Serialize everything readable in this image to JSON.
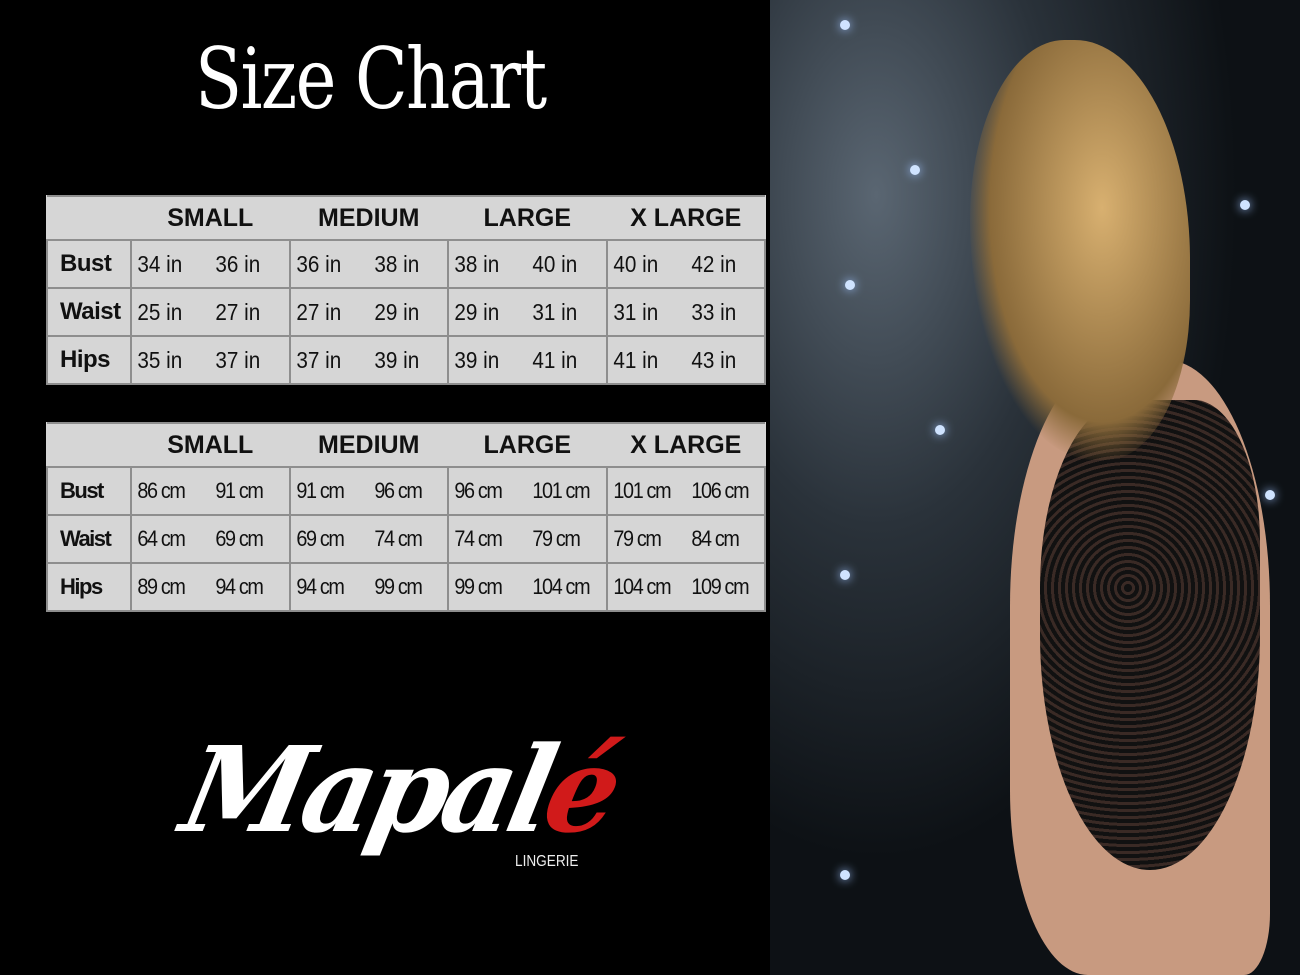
{
  "title": "Size Chart",
  "tables": [
    {
      "headers": [
        "",
        "SMALL",
        "MEDIUM",
        "LARGE",
        "X LARGE"
      ],
      "rows": [
        {
          "label": "Bust",
          "values": [
            "34 in",
            "36 in",
            "36 in",
            "38 in",
            "38 in",
            "40 in",
            "40 in",
            "42 in"
          ]
        },
        {
          "label": "Waist",
          "values": [
            "25 in",
            "27 in",
            "27 in",
            "29 in",
            "29 in",
            "31 in",
            "31 in",
            "33 in"
          ]
        },
        {
          "label": "Hips",
          "values": [
            "35 in",
            "37 in",
            "37 in",
            "39 in",
            "39 in",
            "41 in",
            "41 in",
            "43 in"
          ]
        }
      ]
    },
    {
      "headers": [
        "",
        "SMALL",
        "MEDIUM",
        "LARGE",
        "X LARGE"
      ],
      "rows": [
        {
          "label": "Bust",
          "values": [
            "86 cm",
            "91 cm",
            "91 cm",
            "96 cm",
            "96 cm",
            "101 cm",
            "101 cm",
            "106 cm"
          ]
        },
        {
          "label": "Waist",
          "values": [
            "64 cm",
            "69 cm",
            "69 cm",
            "74 cm",
            "74 cm",
            "79  cm",
            "79 cm",
            "84 cm"
          ]
        },
        {
          "label": "Hips",
          "values": [
            "89 cm",
            "94 cm",
            "94 cm",
            "99 cm",
            "99 cm",
            "104 cm",
            "104 cm",
            "109 cm"
          ]
        }
      ]
    }
  ],
  "logo": {
    "main": "Mapal",
    "accent": "é",
    "sub": "LINGERIE",
    "accent_color": "#d11a1a"
  },
  "colors": {
    "table_bg": "#d6d6d6",
    "background": "#000000"
  }
}
